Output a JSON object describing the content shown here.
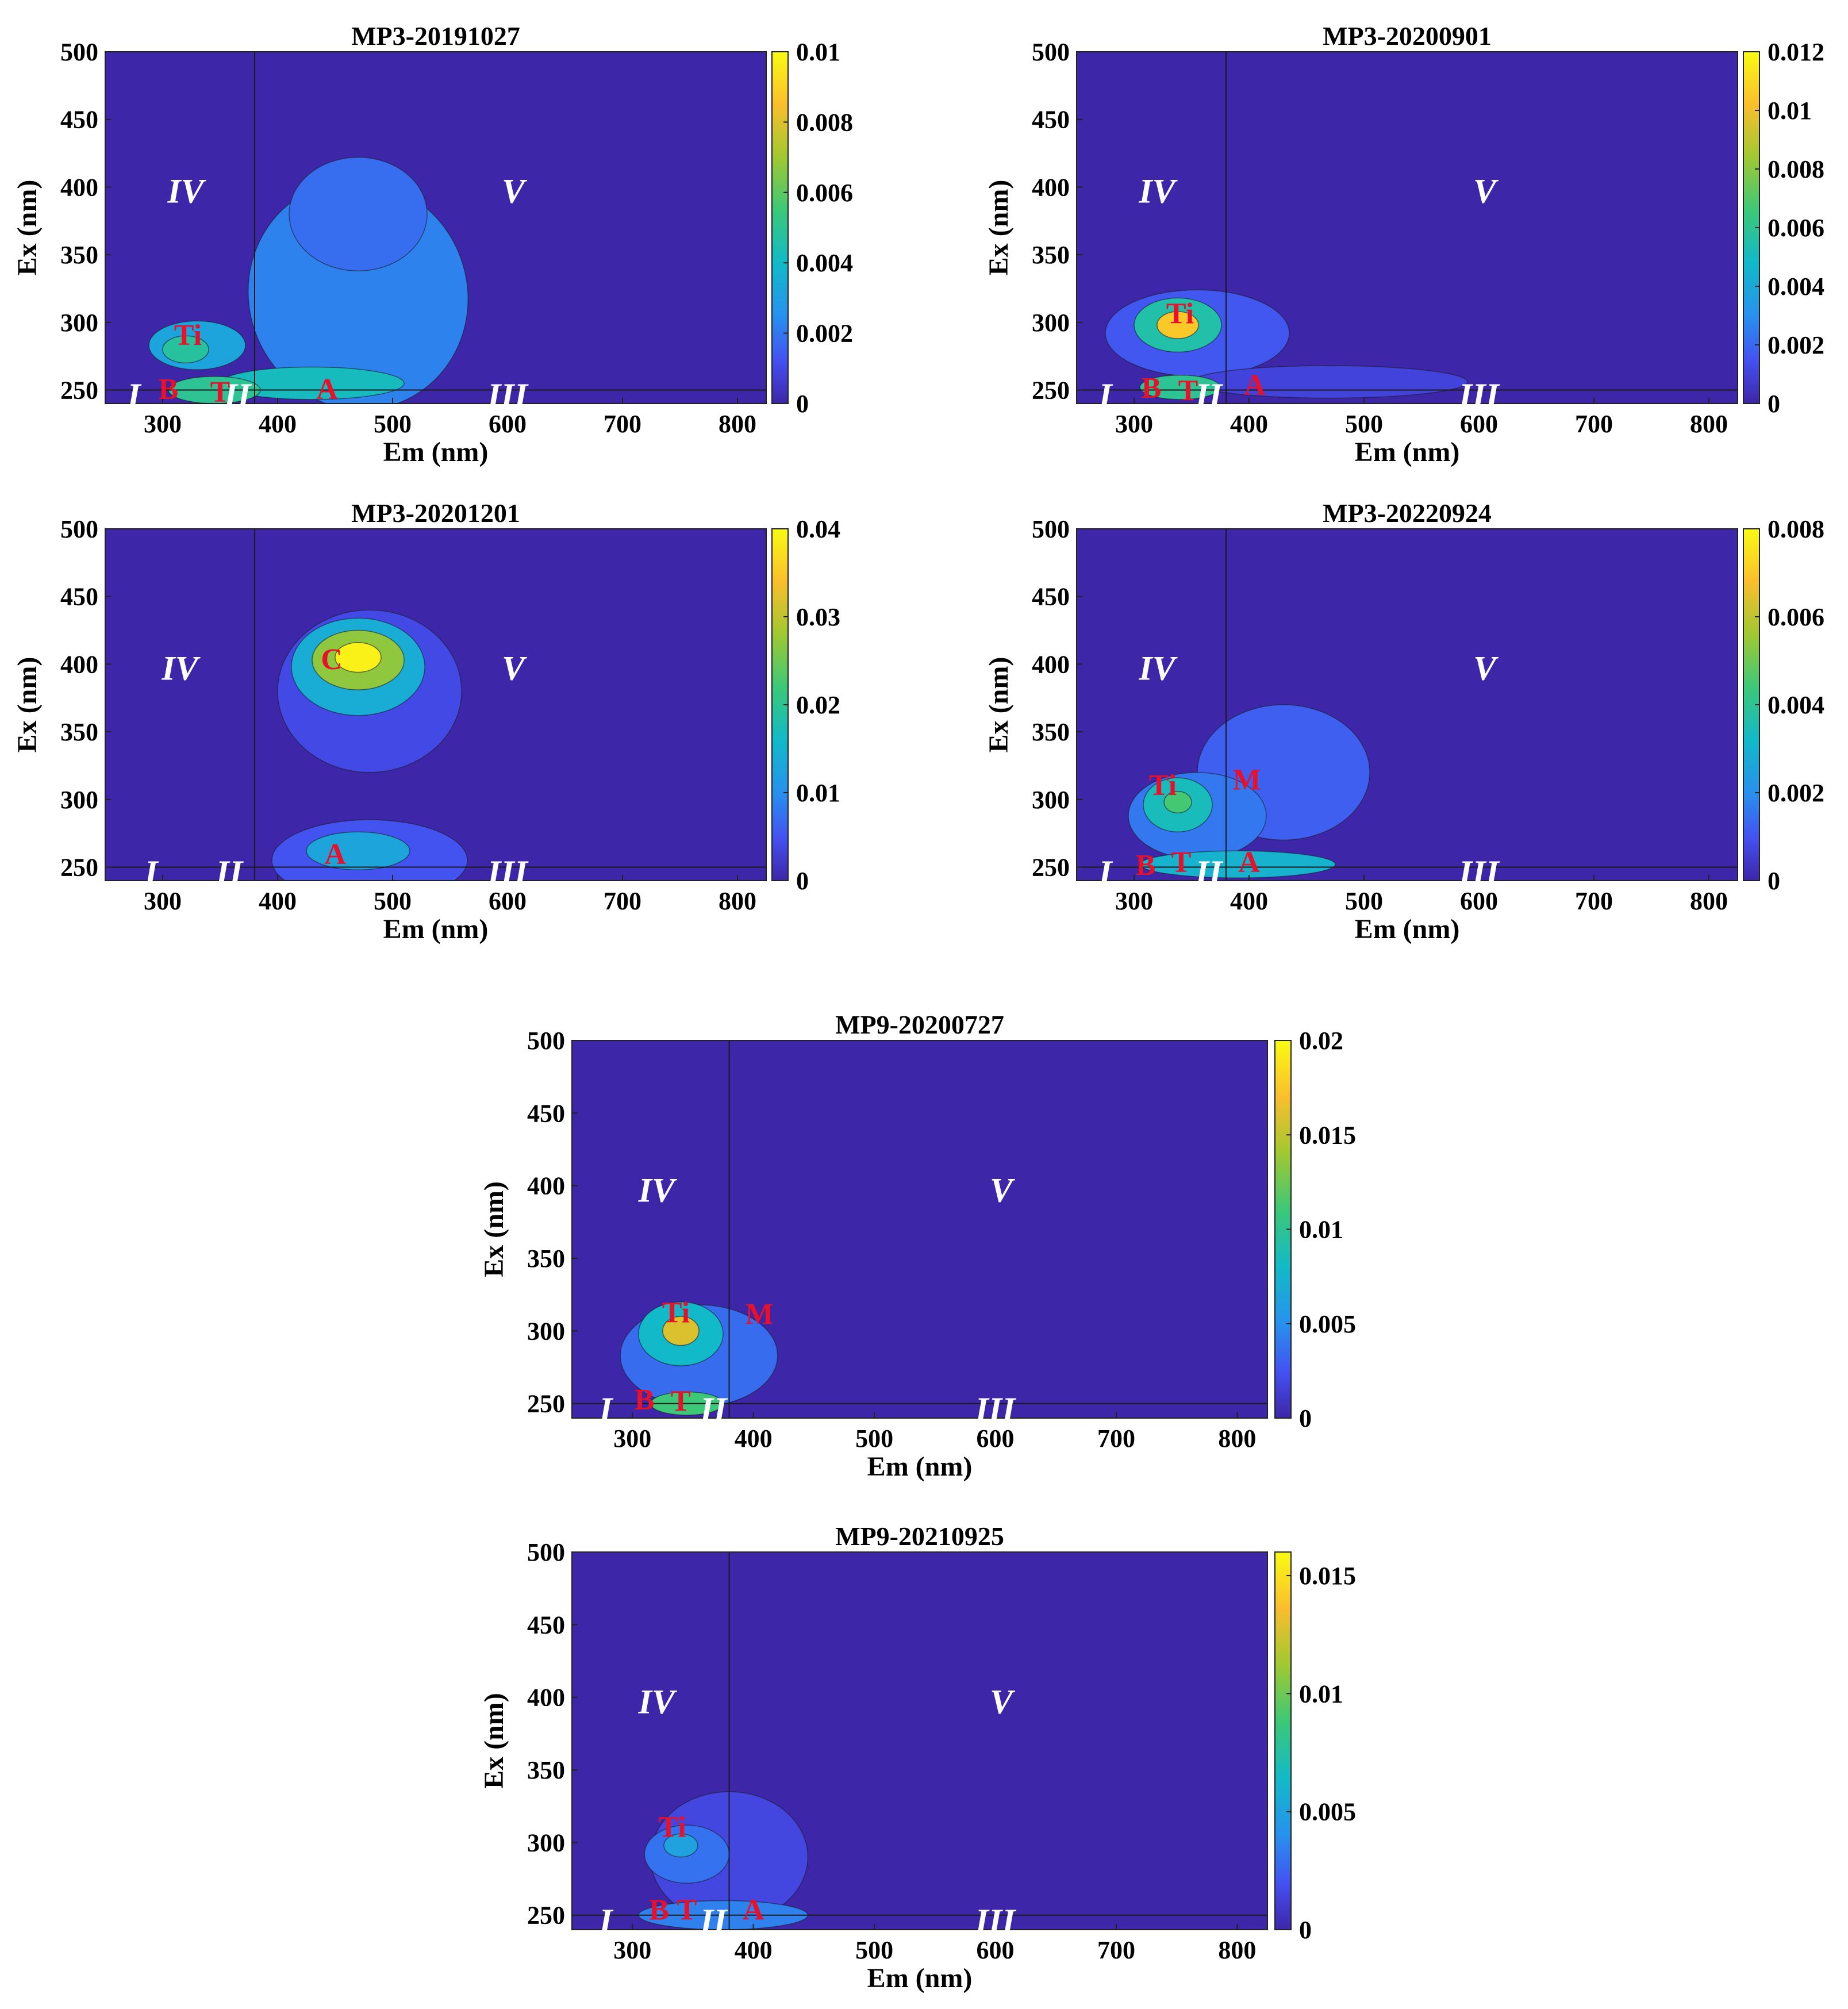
{
  "figure": {
    "description_colormap": "parula",
    "colors": {
      "background": "#3e26a8",
      "line": "#1a1a1a",
      "peak_label": "#e8102a",
      "region_label": "#ffffff"
    }
  },
  "chart_data": [
    {
      "type": "heatmap",
      "title": "MP3-20191027",
      "xlabel": "Em (nm)",
      "ylabel": "Ex (nm)",
      "xlim": [
        250,
        825
      ],
      "ylim": [
        240,
        500
      ],
      "xticks": [
        "300",
        "400",
        "500",
        "600",
        "700",
        "800"
      ],
      "yticks": [
        "500",
        "450",
        "400",
        "350",
        "300",
        "250"
      ],
      "xtick_values": [
        300,
        400,
        500,
        600,
        700,
        800
      ],
      "ytick_values": [
        500,
        450,
        400,
        350,
        300,
        250
      ],
      "colorbar": {
        "min": 0,
        "max": 0.01,
        "ticks": [
          "0.01",
          "0.008",
          "0.006",
          "0.004",
          "0.002",
          "0"
        ],
        "tick_values": [
          0.01,
          0.008,
          0.006,
          0.004,
          0.002,
          0
        ]
      },
      "region_divider": {
        "em": 380,
        "ex": 250
      },
      "regions": [
        {
          "label": "I",
          "em": 275,
          "ex": 246
        },
        {
          "label": "II",
          "em": 365,
          "ex": 246
        },
        {
          "label": "III",
          "em": 600,
          "ex": 246
        },
        {
          "label": "IV",
          "em": 320,
          "ex": 397
        },
        {
          "label": "V",
          "em": 605,
          "ex": 397
        }
      ],
      "peaks": [
        {
          "label": "Ti",
          "em": 322,
          "ex": 291
        },
        {
          "label": "B",
          "em": 305,
          "ex": 251
        },
        {
          "label": "T",
          "em": 350,
          "ex": 249
        },
        {
          "label": "A",
          "em": 443,
          "ex": 251
        }
      ],
      "blobs": [
        {
          "em": 470,
          "ex": 320,
          "rx": 95,
          "ry": 85,
          "v": 0.0022,
          "rot": -20
        },
        {
          "em": 470,
          "ex": 380,
          "rx": 60,
          "ry": 42,
          "v": 0.0018
        },
        {
          "em": 330,
          "ex": 283,
          "rx": 42,
          "ry": 18,
          "v": 0.0032
        },
        {
          "em": 320,
          "ex": 280,
          "rx": 20,
          "ry": 10,
          "v": 0.0048
        },
        {
          "em": 430,
          "ex": 255,
          "rx": 80,
          "ry": 12,
          "v": 0.0042
        },
        {
          "em": 345,
          "ex": 250,
          "rx": 40,
          "ry": 10,
          "v": 0.005
        }
      ]
    },
    {
      "type": "heatmap",
      "title": "MP3-20200901",
      "xlabel": "Em (nm)",
      "ylabel": "Ex (nm)",
      "xlim": [
        250,
        825
      ],
      "ylim": [
        240,
        500
      ],
      "xticks": [
        "300",
        "400",
        "500",
        "600",
        "700",
        "800"
      ],
      "yticks": [
        "500",
        "450",
        "400",
        "350",
        "300",
        "250"
      ],
      "xtick_values": [
        300,
        400,
        500,
        600,
        700,
        800
      ],
      "ytick_values": [
        500,
        450,
        400,
        350,
        300,
        250
      ],
      "colorbar": {
        "min": 0,
        "max": 0.012,
        "ticks": [
          "0.012",
          "0.01",
          "0.008",
          "0.006",
          "0.004",
          "0.002",
          "0"
        ],
        "tick_values": [
          0.012,
          0.01,
          0.008,
          0.006,
          0.004,
          0.002,
          0
        ]
      },
      "region_divider": {
        "em": 380,
        "ex": 250
      },
      "regions": [
        {
          "label": "I",
          "em": 275,
          "ex": 246
        },
        {
          "label": "II",
          "em": 365,
          "ex": 246
        },
        {
          "label": "III",
          "em": 600,
          "ex": 246
        },
        {
          "label": "IV",
          "em": 320,
          "ex": 397
        },
        {
          "label": "V",
          "em": 605,
          "ex": 397
        }
      ],
      "peaks": [
        {
          "label": "Ti",
          "em": 340,
          "ex": 307
        },
        {
          "label": "B",
          "em": 315,
          "ex": 252
        },
        {
          "label": "T",
          "em": 347,
          "ex": 250
        },
        {
          "label": "A",
          "em": 405,
          "ex": 254
        }
      ],
      "blobs": [
        {
          "em": 355,
          "ex": 292,
          "rx": 80,
          "ry": 32,
          "v": 0.0016
        },
        {
          "em": 470,
          "ex": 256,
          "rx": 120,
          "ry": 12,
          "v": 0.001
        },
        {
          "em": 338,
          "ex": 298,
          "rx": 38,
          "ry": 20,
          "v": 0.0055
        },
        {
          "em": 338,
          "ex": 298,
          "rx": 18,
          "ry": 10,
          "v": 0.0105
        },
        {
          "em": 340,
          "ex": 252,
          "rx": 35,
          "ry": 9,
          "v": 0.006
        }
      ]
    },
    {
      "type": "heatmap",
      "title": "MP3-20201201",
      "xlabel": "Em (nm)",
      "ylabel": "Ex (nm)",
      "xlim": [
        250,
        825
      ],
      "ylim": [
        240,
        500
      ],
      "xticks": [
        "300",
        "400",
        "500",
        "600",
        "700",
        "800"
      ],
      "yticks": [
        "500",
        "450",
        "400",
        "350",
        "300",
        "250"
      ],
      "xtick_values": [
        300,
        400,
        500,
        600,
        700,
        800
      ],
      "ytick_values": [
        500,
        450,
        400,
        350,
        300,
        250
      ],
      "colorbar": {
        "min": 0,
        "max": 0.04,
        "ticks": [
          "0.04",
          "0.03",
          "0.02",
          "0.01",
          "0"
        ],
        "tick_values": [
          0.04,
          0.03,
          0.02,
          0.01,
          0
        ]
      },
      "region_divider": {
        "em": 380,
        "ex": 250
      },
      "regions": [
        {
          "label": "I",
          "em": 290,
          "ex": 246
        },
        {
          "label": "II",
          "em": 358,
          "ex": 246
        },
        {
          "label": "III",
          "em": 600,
          "ex": 246
        },
        {
          "label": "IV",
          "em": 315,
          "ex": 397
        },
        {
          "label": "V",
          "em": 605,
          "ex": 397
        }
      ],
      "peaks": [
        {
          "label": "C",
          "em": 447,
          "ex": 404
        },
        {
          "label": "A",
          "em": 450,
          "ex": 260
        }
      ],
      "blobs": [
        {
          "em": 480,
          "ex": 380,
          "rx": 80,
          "ry": 60,
          "v": 0.004
        },
        {
          "em": 470,
          "ex": 398,
          "rx": 58,
          "ry": 36,
          "v": 0.014
        },
        {
          "em": 470,
          "ex": 403,
          "rx": 40,
          "ry": 22,
          "v": 0.027
        },
        {
          "em": 470,
          "ex": 405,
          "rx": 20,
          "ry": 11,
          "v": 0.039
        },
        {
          "em": 480,
          "ex": 255,
          "rx": 85,
          "ry": 30,
          "v": 0.005
        },
        {
          "em": 470,
          "ex": 262,
          "rx": 45,
          "ry": 14,
          "v": 0.013
        }
      ]
    },
    {
      "type": "heatmap",
      "title": "MP3-20220924",
      "xlabel": "Em (nm)",
      "ylabel": "Ex (nm)",
      "xlim": [
        250,
        825
      ],
      "ylim": [
        240,
        500
      ],
      "xticks": [
        "300",
        "400",
        "500",
        "600",
        "700",
        "800"
      ],
      "yticks": [
        "500",
        "450",
        "400",
        "350",
        "300",
        "250"
      ],
      "xtick_values": [
        300,
        400,
        500,
        600,
        700,
        800
      ],
      "ytick_values": [
        500,
        450,
        400,
        350,
        300,
        250
      ],
      "colorbar": {
        "min": 0,
        "max": 0.008,
        "ticks": [
          "0.008",
          "0.006",
          "0.004",
          "0.002",
          "0"
        ],
        "tick_values": [
          0.008,
          0.006,
          0.004,
          0.002,
          0
        ]
      },
      "region_divider": {
        "em": 380,
        "ex": 250
      },
      "regions": [
        {
          "label": "I",
          "em": 275,
          "ex": 246
        },
        {
          "label": "II",
          "em": 365,
          "ex": 246
        },
        {
          "label": "III",
          "em": 600,
          "ex": 246
        },
        {
          "label": "IV",
          "em": 320,
          "ex": 397
        },
        {
          "label": "V",
          "em": 605,
          "ex": 397
        }
      ],
      "peaks": [
        {
          "label": "Ti",
          "em": 325,
          "ex": 311
        },
        {
          "label": "M",
          "em": 398,
          "ex": 315
        },
        {
          "label": "B",
          "em": 310,
          "ex": 252
        },
        {
          "label": "T",
          "em": 341,
          "ex": 254
        },
        {
          "label": "A",
          "em": 400,
          "ex": 254
        }
      ],
      "blobs": [
        {
          "em": 430,
          "ex": 320,
          "rx": 75,
          "ry": 50,
          "v": 0.0012
        },
        {
          "em": 355,
          "ex": 288,
          "rx": 60,
          "ry": 32,
          "v": 0.0016
        },
        {
          "em": 338,
          "ex": 296,
          "rx": 30,
          "ry": 20,
          "v": 0.0034
        },
        {
          "em": 338,
          "ex": 298,
          "rx": 12,
          "ry": 8,
          "v": 0.0045
        },
        {
          "em": 390,
          "ex": 252,
          "rx": 85,
          "ry": 10,
          "v": 0.003
        }
      ]
    },
    {
      "type": "heatmap",
      "title": "MP9-20200727",
      "xlabel": "Em (nm)",
      "ylabel": "Ex (nm)",
      "xlim": [
        250,
        825
      ],
      "ylim": [
        240,
        500
      ],
      "xticks": [
        "300",
        "400",
        "500",
        "600",
        "700",
        "800"
      ],
      "yticks": [
        "500",
        "450",
        "400",
        "350",
        "300",
        "250"
      ],
      "xtick_values": [
        300,
        400,
        500,
        600,
        700,
        800
      ],
      "ytick_values": [
        500,
        450,
        400,
        350,
        300,
        250
      ],
      "colorbar": {
        "min": 0,
        "max": 0.02,
        "ticks": [
          "0.02",
          "0.015",
          "0.01",
          "0.005",
          "0"
        ],
        "tick_values": [
          0.02,
          0.015,
          0.01,
          0.005,
          0
        ]
      },
      "region_divider": {
        "em": 380,
        "ex": 250
      },
      "regions": [
        {
          "label": "I",
          "em": 278,
          "ex": 246
        },
        {
          "label": "II",
          "em": 367,
          "ex": 246
        },
        {
          "label": "III",
          "em": 600,
          "ex": 246
        },
        {
          "label": "IV",
          "em": 320,
          "ex": 397
        },
        {
          "label": "V",
          "em": 605,
          "ex": 397
        }
      ],
      "peaks": [
        {
          "label": "Ti",
          "em": 336,
          "ex": 313
        },
        {
          "label": "M",
          "em": 405,
          "ex": 312
        },
        {
          "label": "B",
          "em": 310,
          "ex": 253
        },
        {
          "label": "T",
          "em": 340,
          "ex": 252
        }
      ],
      "blobs": [
        {
          "em": 355,
          "ex": 283,
          "rx": 65,
          "ry": 35,
          "v": 0.0035
        },
        {
          "em": 340,
          "ex": 298,
          "rx": 35,
          "ry": 22,
          "v": 0.008
        },
        {
          "em": 340,
          "ex": 300,
          "rx": 15,
          "ry": 10,
          "v": 0.016
        },
        {
          "em": 345,
          "ex": 250,
          "rx": 30,
          "ry": 8,
          "v": 0.011
        }
      ]
    },
    {
      "type": "heatmap",
      "title": "MP9-20210925",
      "xlabel": "Em (nm)",
      "ylabel": "Ex (nm)",
      "xlim": [
        250,
        825
      ],
      "ylim": [
        240,
        500
      ],
      "xticks": [
        "300",
        "400",
        "500",
        "600",
        "700",
        "800"
      ],
      "yticks": [
        "500",
        "450",
        "400",
        "350",
        "300",
        "250"
      ],
      "xtick_values": [
        300,
        400,
        500,
        600,
        700,
        800
      ],
      "ytick_values": [
        500,
        450,
        400,
        350,
        300,
        250
      ],
      "colorbar": {
        "min": 0,
        "max": 0.016,
        "ticks": [
          "0.015",
          "0.01",
          "0.005",
          "0"
        ],
        "tick_values": [
          0.015,
          0.01,
          0.005,
          0
        ]
      },
      "region_divider": {
        "em": 380,
        "ex": 250
      },
      "regions": [
        {
          "label": "I",
          "em": 278,
          "ex": 246
        },
        {
          "label": "II",
          "em": 367,
          "ex": 246
        },
        {
          "label": "III",
          "em": 600,
          "ex": 246
        },
        {
          "label": "IV",
          "em": 320,
          "ex": 397
        },
        {
          "label": "V",
          "em": 605,
          "ex": 397
        }
      ],
      "peaks": [
        {
          "label": "Ti",
          "em": 333,
          "ex": 311
        },
        {
          "label": "B",
          "em": 322,
          "ex": 254
        },
        {
          "label": "T",
          "em": 345,
          "ex": 254
        },
        {
          "label": "A",
          "em": 400,
          "ex": 254
        }
      ],
      "blobs": [
        {
          "em": 380,
          "ex": 290,
          "rx": 65,
          "ry": 45,
          "v": 0.0015
        },
        {
          "em": 345,
          "ex": 292,
          "rx": 35,
          "ry": 20,
          "v": 0.003
        },
        {
          "em": 340,
          "ex": 298,
          "rx": 14,
          "ry": 8,
          "v": 0.005
        },
        {
          "em": 375,
          "ex": 250,
          "rx": 70,
          "ry": 10,
          "v": 0.0035
        }
      ]
    }
  ]
}
